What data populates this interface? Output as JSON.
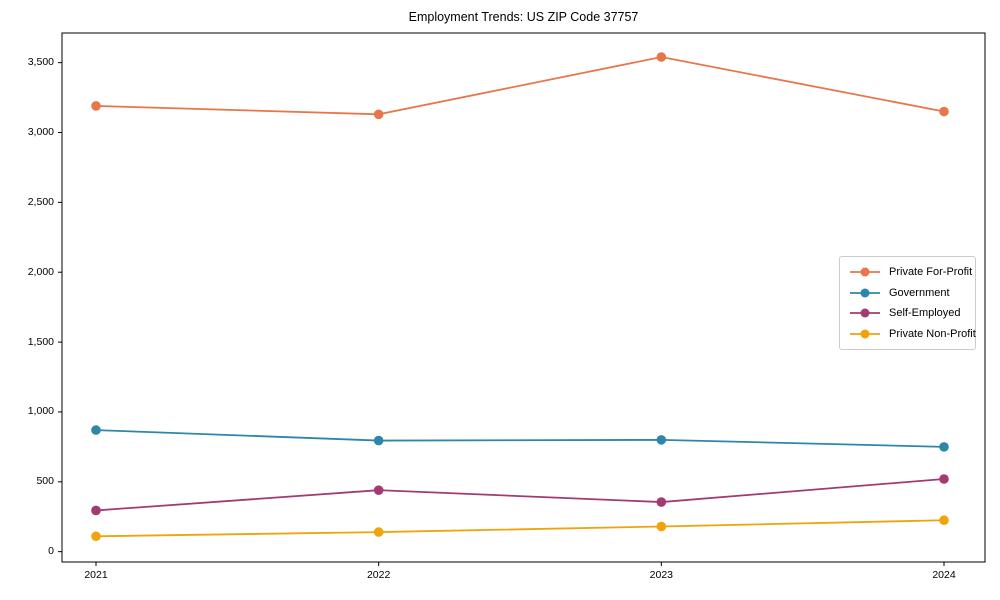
{
  "chart_data": {
    "type": "line",
    "title": "Employment Trends: US ZIP Code 37757",
    "xlabel": "",
    "ylabel": "",
    "categories": [
      "2021",
      "2022",
      "2023",
      "2024"
    ],
    "series": [
      {
        "name": "Private For-Profit",
        "color": "#E8764B",
        "values": [
          3190,
          3130,
          3540,
          3150
        ]
      },
      {
        "name": "Government",
        "color": "#2E86AB",
        "values": [
          870,
          795,
          800,
          750
        ]
      },
      {
        "name": "Self-Employed",
        "color": "#A23B72",
        "values": [
          295,
          440,
          355,
          520
        ]
      },
      {
        "name": "Private Non-Profit",
        "color": "#F0A30A",
        "values": [
          110,
          140,
          180,
          225
        ]
      }
    ],
    "ylim": [
      -74,
      3712
    ],
    "yticks": [
      {
        "value": 0,
        "label": "0"
      },
      {
        "value": 500,
        "label": "500"
      },
      {
        "value": 1000,
        "label": "1,000"
      },
      {
        "value": 1500,
        "label": "1,500"
      },
      {
        "value": 2000,
        "label": "2,000"
      },
      {
        "value": 2500,
        "label": "2,500"
      },
      {
        "value": 3000,
        "label": "3,000"
      },
      {
        "value": 3500,
        "label": "3,500"
      }
    ],
    "grid": false,
    "marker": "circle",
    "legend_position": "center-right",
    "background_color": "#ffffff",
    "frame_color": "#000000",
    "tick_color": "#000000",
    "legend_border_color": "#cccccc"
  }
}
